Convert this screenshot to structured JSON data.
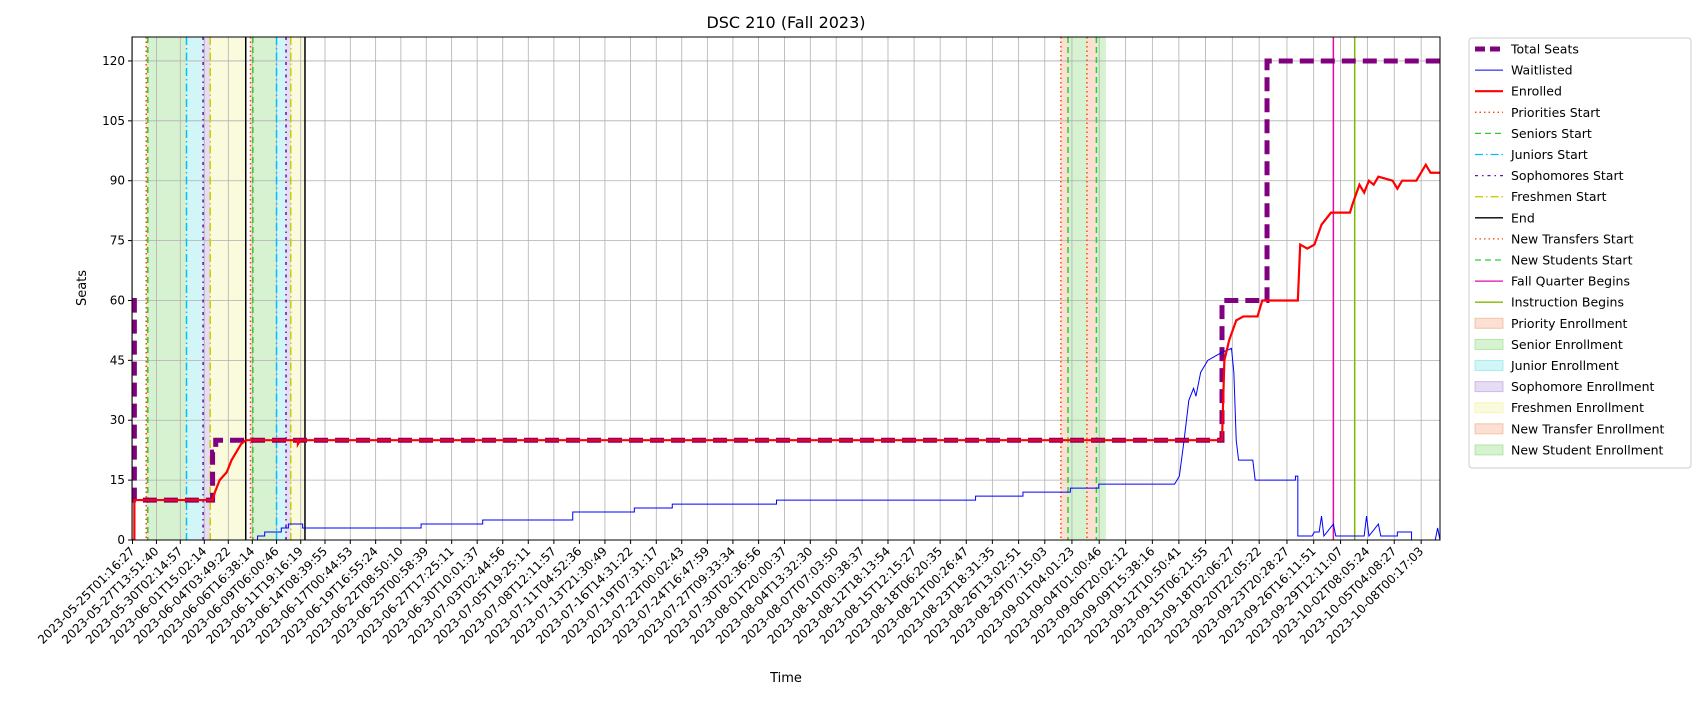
{
  "chart_data": {
    "type": "line",
    "title": "DSC 210 (Fall 2023)",
    "xlabel": "Time",
    "ylabel": "Seats",
    "x_type": "datetime",
    "xlim": [
      "2023-05-25T00:00:00",
      "2023-10-10T00:00:00"
    ],
    "ylim": [
      0,
      126
    ],
    "yticks": [
      0,
      15,
      30,
      45,
      60,
      75,
      90,
      105,
      120
    ],
    "grid": true,
    "legend_position": "outside-right",
    "xtick_labels": [
      "2023-05-25T01:16:27",
      "2023-05-27T13:51:40",
      "2023-05-30T02:14:57",
      "2023-06-01T15:02:14",
      "2023-06-04T03:49:22",
      "2023-06-06T16:38:14",
      "2023-06-09T06:00:46",
      "2023-06-11T19:16:19",
      "2023-06-14T08:39:55",
      "2023-06-17T00:44:53",
      "2023-06-19T16:55:24",
      "2023-06-22T08:50:10",
      "2023-06-25T00:58:39",
      "2023-06-27T17:25:11",
      "2023-06-30T10:01:37",
      "2023-07-03T02:44:56",
      "2023-07-05T19:25:11",
      "2023-07-08T12:11:57",
      "2023-07-11T04:52:36",
      "2023-07-13T21:30:49",
      "2023-07-16T14:31:22",
      "2023-07-19T07:31:17",
      "2023-07-22T00:02:43",
      "2023-07-24T16:47:59",
      "2023-07-27T09:33:34",
      "2023-07-30T02:36:56",
      "2023-08-01T20:00:37",
      "2023-08-04T13:32:30",
      "2023-08-07T07:03:50",
      "2023-08-10T00:38:37",
      "2023-08-12T18:13:54",
      "2023-08-15T12:15:27",
      "2023-08-18T06:20:35",
      "2023-08-21T00:26:47",
      "2023-08-23T18:31:35",
      "2023-08-26T13:02:51",
      "2023-08-29T07:15:03",
      "2023-09-01T04:01:23",
      "2023-09-04T01:00:46",
      "2023-09-06T20:02:12",
      "2023-09-09T15:38:16",
      "2023-09-12T10:50:41",
      "2023-09-15T06:21:55",
      "2023-09-18T02:06:27",
      "2023-09-20T22:05:22",
      "2023-09-23T20:28:27",
      "2023-09-26T16:11:51",
      "2023-09-29T12:11:07",
      "2023-10-02T08:05:24",
      "2023-10-05T04:08:27",
      "2023-10-08T00:17:03"
    ],
    "series": [
      {
        "name": "Total Seats",
        "color": "#800080",
        "style": "dashed-thick",
        "points": [
          [
            "2023-05-25T01:16:27",
            60
          ],
          [
            "2023-05-25T06:00:00",
            60
          ],
          [
            "2023-05-25T06:00:00",
            10
          ],
          [
            "2023-06-02T12:00:00",
            10
          ],
          [
            "2023-06-02T12:00:00",
            22
          ],
          [
            "2023-06-02T20:00:00",
            22
          ],
          [
            "2023-06-02T20:00:00",
            25
          ],
          [
            "2023-09-17T00:00:00",
            25
          ],
          [
            "2023-09-17T00:00:00",
            60
          ],
          [
            "2023-09-21T18:00:00",
            60
          ],
          [
            "2023-09-21T18:00:00",
            120
          ],
          [
            "2023-10-10T00:00:00",
            120
          ]
        ]
      },
      {
        "name": "Waitlisted",
        "color": "#0000ff",
        "style": "solid-thin",
        "points": [
          [
            "2023-05-25T00:00:00",
            0
          ],
          [
            "2023-06-07T06:00:00",
            0
          ],
          [
            "2023-06-07T06:00:00",
            1
          ],
          [
            "2023-06-08T00:00:00",
            1
          ],
          [
            "2023-06-08T00:00:00",
            2
          ],
          [
            "2023-06-09T18:00:00",
            2
          ],
          [
            "2023-06-09T18:00:00",
            3
          ],
          [
            "2023-06-10T12:00:00",
            3
          ],
          [
            "2023-06-10T12:00:00",
            4
          ],
          [
            "2023-06-12T00:00:00",
            4
          ],
          [
            "2023-06-12T00:00:00",
            3
          ],
          [
            "2023-06-24T12:00:00",
            3
          ],
          [
            "2023-06-24T12:00:00",
            4
          ],
          [
            "2023-07-01T00:00:00",
            4
          ],
          [
            "2023-07-01T00:00:00",
            5
          ],
          [
            "2023-07-10T12:00:00",
            5
          ],
          [
            "2023-07-10T12:00:00",
            7
          ],
          [
            "2023-07-17T00:00:00",
            7
          ],
          [
            "2023-07-17T00:00:00",
            8
          ],
          [
            "2023-07-21T00:00:00",
            8
          ],
          [
            "2023-07-21T00:00:00",
            9
          ],
          [
            "2023-08-01T00:00:00",
            9
          ],
          [
            "2023-08-01T00:00:00",
            10
          ],
          [
            "2023-08-22T00:00:00",
            10
          ],
          [
            "2023-08-22T00:00:00",
            11
          ],
          [
            "2023-08-27T00:00:00",
            11
          ],
          [
            "2023-08-27T00:00:00",
            12
          ],
          [
            "2023-09-01T00:00:00",
            12
          ],
          [
            "2023-09-01T00:00:00",
            13
          ],
          [
            "2023-09-04T00:00:00",
            13
          ],
          [
            "2023-09-04T00:00:00",
            14
          ],
          [
            "2023-09-12T00:00:00",
            14
          ],
          [
            "2023-09-12T12:00:00",
            16
          ],
          [
            "2023-09-13T00:00:00",
            25
          ],
          [
            "2023-09-13T12:00:00",
            35
          ],
          [
            "2023-09-14T00:00:00",
            38
          ],
          [
            "2023-09-14T06:00:00",
            36
          ],
          [
            "2023-09-14T18:00:00",
            42
          ],
          [
            "2023-09-15T12:00:00",
            45
          ],
          [
            "2023-09-16T06:00:00",
            46
          ],
          [
            "2023-09-17T00:00:00",
            47
          ],
          [
            "2023-09-18T00:00:00",
            48
          ],
          [
            "2023-09-18T06:00:00",
            42
          ],
          [
            "2023-09-18T12:00:00",
            25
          ],
          [
            "2023-09-18T18:00:00",
            20
          ],
          [
            "2023-09-20T06:00:00",
            20
          ],
          [
            "2023-09-20T12:00:00",
            15
          ],
          [
            "2023-09-24T18:00:00",
            15
          ],
          [
            "2023-09-24T18:00:00",
            16
          ],
          [
            "2023-09-25T00:00:00",
            16
          ],
          [
            "2023-09-25T00:00:00",
            1
          ],
          [
            "2023-09-26T12:00:00",
            1
          ],
          [
            "2023-09-26T18:00:00",
            2
          ],
          [
            "2023-09-27T06:00:00",
            2
          ],
          [
            "2023-09-27T12:00:00",
            6
          ],
          [
            "2023-09-27T18:00:00",
            1
          ],
          [
            "2023-09-28T18:00:00",
            4
          ],
          [
            "2023-09-29T00:00:00",
            1
          ],
          [
            "2023-10-02T00:00:00",
            1
          ],
          [
            "2023-10-02T06:00:00",
            6
          ],
          [
            "2023-10-02T12:00:00",
            1
          ],
          [
            "2023-10-03T12:00:00",
            4
          ],
          [
            "2023-10-03T18:00:00",
            1
          ],
          [
            "2023-10-05T12:00:00",
            1
          ],
          [
            "2023-10-05T12:00:00",
            2
          ],
          [
            "2023-10-07T00:00:00",
            2
          ],
          [
            "2023-10-07T00:00:00",
            0
          ],
          [
            "2023-10-09T12:00:00",
            0
          ],
          [
            "2023-10-09T18:00:00",
            3
          ],
          [
            "2023-10-10T00:00:00",
            0
          ]
        ]
      },
      {
        "name": "Enrolled",
        "color": "#ff0000",
        "style": "solid-thick",
        "points": [
          [
            "2023-05-25T01:16:27",
            0
          ],
          [
            "2023-05-25T06:00:00",
            0
          ],
          [
            "2023-05-25T06:00:00",
            10
          ],
          [
            "2023-06-02T12:00:00",
            10
          ],
          [
            "2023-06-02T18:00:00",
            12
          ],
          [
            "2023-06-03T06:00:00",
            15
          ],
          [
            "2023-06-04T00:00:00",
            17
          ],
          [
            "2023-06-04T12:00:00",
            20
          ],
          [
            "2023-06-05T00:00:00",
            22
          ],
          [
            "2023-06-05T12:00:00",
            24
          ],
          [
            "2023-06-06T00:00:00",
            25
          ],
          [
            "2023-06-11T12:00:00",
            25
          ],
          [
            "2023-06-11T12:00:00",
            24
          ],
          [
            "2023-06-11T18:00:00",
            25
          ],
          [
            "2023-09-17T00:00:00",
            25
          ],
          [
            "2023-09-17T06:00:00",
            45
          ],
          [
            "2023-09-17T18:00:00",
            50
          ],
          [
            "2023-09-18T12:00:00",
            55
          ],
          [
            "2023-09-19T06:00:00",
            56
          ],
          [
            "2023-09-20T18:00:00",
            56
          ],
          [
            "2023-09-21T00:00:00",
            58
          ],
          [
            "2023-09-21T06:00:00",
            60
          ],
          [
            "2023-09-23T12:00:00",
            60
          ],
          [
            "2023-09-25T00:00:00",
            60
          ],
          [
            "2023-09-25T06:00:00",
            74
          ],
          [
            "2023-09-26T00:00:00",
            73
          ],
          [
            "2023-09-26T18:00:00",
            74
          ],
          [
            "2023-09-27T12:00:00",
            79
          ],
          [
            "2023-09-28T12:00:00",
            82
          ],
          [
            "2023-09-30T12:00:00",
            82
          ],
          [
            "2023-09-30T18:00:00",
            84
          ],
          [
            "2023-10-01T12:00:00",
            89
          ],
          [
            "2023-10-02T00:00:00",
            87
          ],
          [
            "2023-10-02T12:00:00",
            90
          ],
          [
            "2023-10-03T00:00:00",
            89
          ],
          [
            "2023-10-03T12:00:00",
            91
          ],
          [
            "2023-10-05T00:00:00",
            90
          ],
          [
            "2023-10-05T12:00:00",
            88
          ],
          [
            "2023-10-06T00:00:00",
            90
          ],
          [
            "2023-10-07T12:00:00",
            90
          ],
          [
            "2023-10-08T12:00:00",
            94
          ],
          [
            "2023-10-09T00:00:00",
            92
          ],
          [
            "2023-10-10T00:00:00",
            92
          ]
        ]
      }
    ],
    "vlines": [
      {
        "name": "Priorities Start",
        "color": "#ff4500",
        "style": "dotted",
        "at": [
          "2023-05-26T12:00:00",
          "2023-06-06T12:00:00"
        ]
      },
      {
        "name": "Seniors Start",
        "color": "#32cd32",
        "style": "dashed",
        "at": [
          "2023-05-26T16:00:00",
          "2023-06-06T18:00:00"
        ]
      },
      {
        "name": "Juniors Start",
        "color": "#00bfff",
        "style": "dashdot",
        "at": [
          "2023-05-30T18:00:00",
          "2023-06-09T06:00:00"
        ]
      },
      {
        "name": "Sophomores Start",
        "color": "#6a0dad",
        "style": "dashdot-dense",
        "at": [
          "2023-06-01T12:00:00",
          "2023-06-10T06:00:00"
        ]
      },
      {
        "name": "Freshmen Start",
        "color": "#cccc00",
        "style": "dashdot",
        "at": [
          "2023-06-02T06:00:00",
          "2023-06-10T18:00:00"
        ]
      },
      {
        "name": "End",
        "color": "#000000",
        "style": "solid",
        "at": [
          "2023-06-06T00:00:00",
          "2023-06-12T06:00:00"
        ]
      },
      {
        "name": "New Transfers Start",
        "color": "#ff4500",
        "style": "dotted",
        "at": [
          "2023-08-31T00:00:00",
          "2023-09-02T18:00:00"
        ]
      },
      {
        "name": "New Students Start",
        "color": "#32cd32",
        "style": "dashed",
        "at": [
          "2023-08-31T18:00:00",
          "2023-09-03T18:00:00"
        ]
      },
      {
        "name": "Fall Quarter Begins",
        "color": "#e40ba3",
        "style": "solid",
        "at": [
          "2023-09-28T18:00:00"
        ]
      },
      {
        "name": "Instruction Begins",
        "color": "#7fb800",
        "style": "solid",
        "at": [
          "2023-10-01T00:00:00"
        ]
      }
    ],
    "spans": [
      {
        "name": "Priority Enrollment",
        "color": "#f4a582",
        "ranges": [
          [
            "2023-05-26T12:00:00",
            "2023-05-26T16:00:00"
          ],
          [
            "2023-06-06T12:00:00",
            "2023-06-06T18:00:00"
          ]
        ]
      },
      {
        "name": "Senior Enrollment",
        "color": "#8ddb7c",
        "ranges": [
          [
            "2023-05-26T16:00:00",
            "2023-05-30T18:00:00"
          ],
          [
            "2023-06-06T18:00:00",
            "2023-06-09T06:00:00"
          ]
        ]
      },
      {
        "name": "Junior Enrollment",
        "color": "#7fe5e8",
        "ranges": [
          [
            "2023-05-30T18:00:00",
            "2023-06-01T12:00:00"
          ],
          [
            "2023-06-09T06:00:00",
            "2023-06-10T06:00:00"
          ]
        ]
      },
      {
        "name": "Sophomore Enrollment",
        "color": "#b79be0",
        "ranges": [
          [
            "2023-06-01T12:00:00",
            "2023-06-02T06:00:00"
          ],
          [
            "2023-06-10T06:00:00",
            "2023-06-10T18:00:00"
          ]
        ]
      },
      {
        "name": "Freshmen Enrollment",
        "color": "#f2f09a",
        "ranges": [
          [
            "2023-06-02T06:00:00",
            "2023-06-06T00:00:00"
          ],
          [
            "2023-06-10T18:00:00",
            "2023-06-12T06:00:00"
          ]
        ]
      },
      {
        "name": "New Transfer Enrollment",
        "color": "#f4a582",
        "ranges": [
          [
            "2023-08-31T00:00:00",
            "2023-08-31T18:00:00"
          ],
          [
            "2023-09-02T18:00:00",
            "2023-09-03T18:00:00"
          ]
        ]
      },
      {
        "name": "New Student Enrollment",
        "color": "#8ddb7c",
        "ranges": [
          [
            "2023-08-31T18:00:00",
            "2023-09-02T18:00:00"
          ],
          [
            "2023-09-03T18:00:00",
            "2023-09-04T18:00:00"
          ]
        ]
      }
    ],
    "legend": [
      {
        "label": "Total Seats",
        "kind": "line",
        "color": "#800080",
        "style": "dashed-thick"
      },
      {
        "label": "Waitlisted",
        "kind": "line",
        "color": "#0000ff",
        "style": "solid-thin"
      },
      {
        "label": "Enrolled",
        "kind": "line",
        "color": "#ff0000",
        "style": "solid-thick"
      },
      {
        "label": "Priorities Start",
        "kind": "line",
        "color": "#ff4500",
        "style": "dotted"
      },
      {
        "label": "Seniors Start",
        "kind": "line",
        "color": "#32cd32",
        "style": "dashed"
      },
      {
        "label": "Juniors Start",
        "kind": "line",
        "color": "#00bfff",
        "style": "dashdot"
      },
      {
        "label": "Sophomores Start",
        "kind": "line",
        "color": "#6a0dad",
        "style": "dashdot-dense"
      },
      {
        "label": "Freshmen Start",
        "kind": "line",
        "color": "#cccc00",
        "style": "dashdot"
      },
      {
        "label": "End",
        "kind": "line",
        "color": "#000000",
        "style": "solid"
      },
      {
        "label": "New Transfers Start",
        "kind": "line",
        "color": "#ff4500",
        "style": "dotted"
      },
      {
        "label": "New Students Start",
        "kind": "line",
        "color": "#32cd32",
        "style": "dashed"
      },
      {
        "label": "Fall Quarter Begins",
        "kind": "line",
        "color": "#e40ba3",
        "style": "solid"
      },
      {
        "label": "Instruction Begins",
        "kind": "line",
        "color": "#7fb800",
        "style": "solid"
      },
      {
        "label": "Priority Enrollment",
        "kind": "patch",
        "color": "#f4a582"
      },
      {
        "label": "Senior Enrollment",
        "kind": "patch",
        "color": "#8ddb7c"
      },
      {
        "label": "Junior Enrollment",
        "kind": "patch",
        "color": "#7fe5e8"
      },
      {
        "label": "Sophomore Enrollment",
        "kind": "patch",
        "color": "#b79be0"
      },
      {
        "label": "Freshmen Enrollment",
        "kind": "patch",
        "color": "#f2f09a"
      },
      {
        "label": "New Transfer Enrollment",
        "kind": "patch",
        "color": "#f4a582"
      },
      {
        "label": "New Student Enrollment",
        "kind": "patch",
        "color": "#8ddb7c"
      }
    ]
  }
}
